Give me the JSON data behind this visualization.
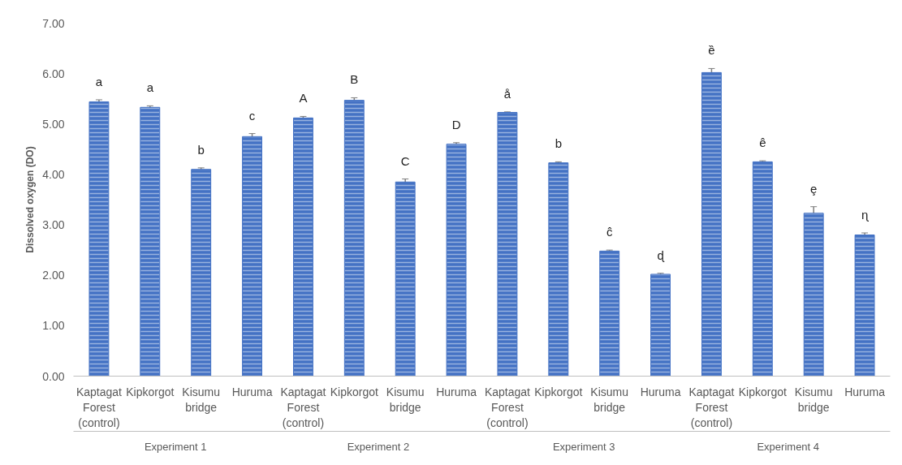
{
  "chart_data": {
    "type": "bar",
    "ylabel": "Dissolved oxygen (DO)",
    "categories": [
      "Kaptagat\nForest\n(control)",
      "Kipkorgot",
      "Kisumu\nbridge",
      "Huruma",
      "Kaptagat\nForest\n(control)",
      "Kipkorgot",
      "Kisumu\nbridge",
      "Huruma",
      "Kaptagat\nForest\n(control)",
      "Kipkorgot",
      "Kisumu\nbridge",
      "Huruma",
      "Kaptagat\nForest\n(control)",
      "Kipkorgot",
      "Kisumu\nbridge",
      "Huruma"
    ],
    "values": [
      5.44,
      5.33,
      4.1,
      4.75,
      5.12,
      5.47,
      3.85,
      4.6,
      5.23,
      4.23,
      2.48,
      2.02,
      6.02,
      4.25,
      3.23,
      2.8
    ],
    "errors": [
      0.04,
      0.03,
      0.03,
      0.06,
      0.03,
      0.05,
      0.06,
      0.03,
      0.01,
      0.02,
      0.02,
      0.02,
      0.08,
      0.02,
      0.13,
      0.04
    ],
    "value_labels": [
      "a",
      "a",
      "b",
      "c",
      "A",
      "B",
      "C",
      "D",
      "å",
      "b",
      "ĉ",
      "ɖ",
      "ȅ",
      "ê",
      "ȩ",
      "ɳ"
    ],
    "annotations": [
      "Experiment 1",
      "Experiment  2",
      "Experiment 3",
      "Experiment 4"
    ],
    "color": "#4472c4",
    "ylim": [
      0,
      7
    ],
    "yticks": [
      {
        "value": 0,
        "label": "0.00"
      },
      {
        "value": 1,
        "label": "1.00"
      },
      {
        "value": 2,
        "label": "2.00"
      },
      {
        "value": 3,
        "label": "3.00"
      },
      {
        "value": 4,
        "label": "4.00"
      },
      {
        "value": 5,
        "label": "5.00"
      },
      {
        "value": 6,
        "label": "6.00"
      },
      {
        "value": 7,
        "label": "7.00"
      }
    ],
    "grid": false
  }
}
